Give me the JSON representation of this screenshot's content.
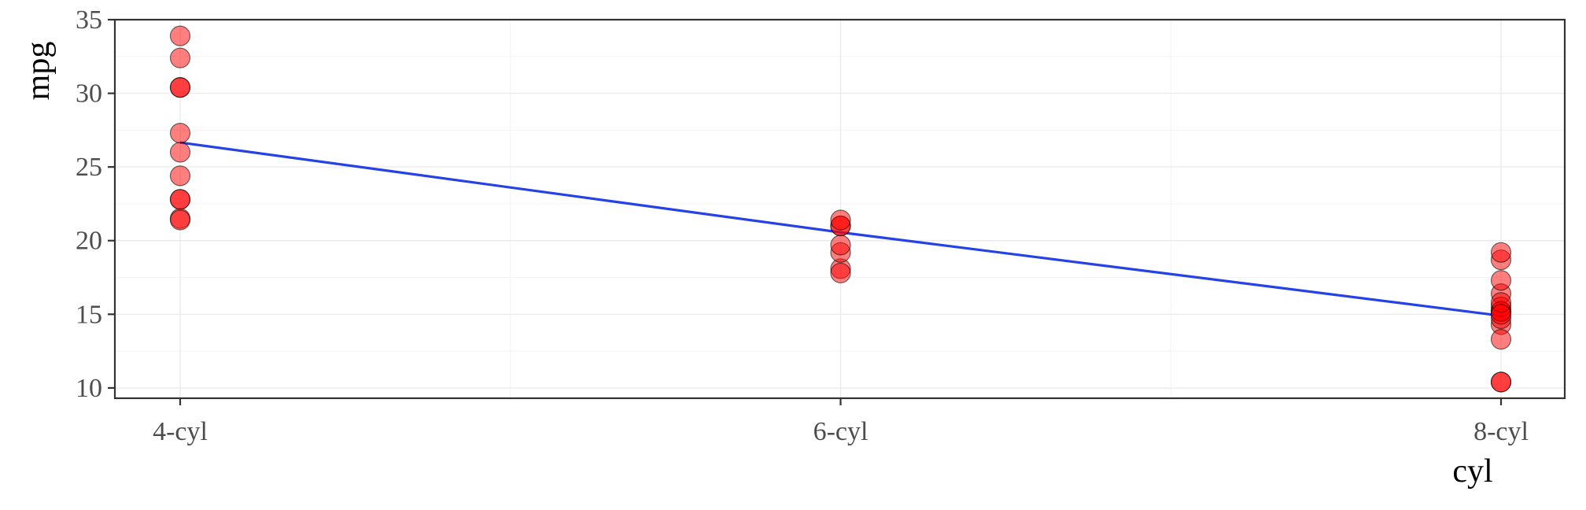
{
  "chart_data": {
    "type": "scatter",
    "xlabel": "cyl",
    "ylabel": "mpg",
    "categories": [
      "4-cyl",
      "6-cyl",
      "8-cyl"
    ],
    "ylim": [
      9.3,
      35
    ],
    "yticks": [
      10,
      15,
      20,
      25,
      30,
      35
    ],
    "grid": true,
    "point_color": "#FF0000",
    "point_alpha": 0.5,
    "line_color": "#2442E8",
    "points": [
      {
        "x": "4-cyl",
        "y": 22.8
      },
      {
        "x": "4-cyl",
        "y": 24.4
      },
      {
        "x": "4-cyl",
        "y": 22.8
      },
      {
        "x": "4-cyl",
        "y": 32.4
      },
      {
        "x": "4-cyl",
        "y": 30.4
      },
      {
        "x": "4-cyl",
        "y": 33.9
      },
      {
        "x": "4-cyl",
        "y": 21.5
      },
      {
        "x": "4-cyl",
        "y": 27.3
      },
      {
        "x": "4-cyl",
        "y": 26.0
      },
      {
        "x": "4-cyl",
        "y": 30.4
      },
      {
        "x": "4-cyl",
        "y": 21.4
      },
      {
        "x": "6-cyl",
        "y": 21.0
      },
      {
        "x": "6-cyl",
        "y": 21.0
      },
      {
        "x": "6-cyl",
        "y": 21.4
      },
      {
        "x": "6-cyl",
        "y": 18.1
      },
      {
        "x": "6-cyl",
        "y": 19.2
      },
      {
        "x": "6-cyl",
        "y": 17.8
      },
      {
        "x": "6-cyl",
        "y": 19.7
      },
      {
        "x": "8-cyl",
        "y": 18.7
      },
      {
        "x": "8-cyl",
        "y": 14.3
      },
      {
        "x": "8-cyl",
        "y": 16.4
      },
      {
        "x": "8-cyl",
        "y": 17.3
      },
      {
        "x": "8-cyl",
        "y": 15.2
      },
      {
        "x": "8-cyl",
        "y": 10.4
      },
      {
        "x": "8-cyl",
        "y": 10.4
      },
      {
        "x": "8-cyl",
        "y": 14.7
      },
      {
        "x": "8-cyl",
        "y": 15.5
      },
      {
        "x": "8-cyl",
        "y": 15.2
      },
      {
        "x": "8-cyl",
        "y": 13.3
      },
      {
        "x": "8-cyl",
        "y": 19.2
      },
      {
        "x": "8-cyl",
        "y": 15.8
      },
      {
        "x": "8-cyl",
        "y": 15.0
      }
    ],
    "series": [
      {
        "type": "line",
        "x": [
          "4-cyl",
          "6-cyl",
          "8-cyl"
        ],
        "values": [
          26.66,
          20.56,
          14.9
        ]
      }
    ]
  }
}
